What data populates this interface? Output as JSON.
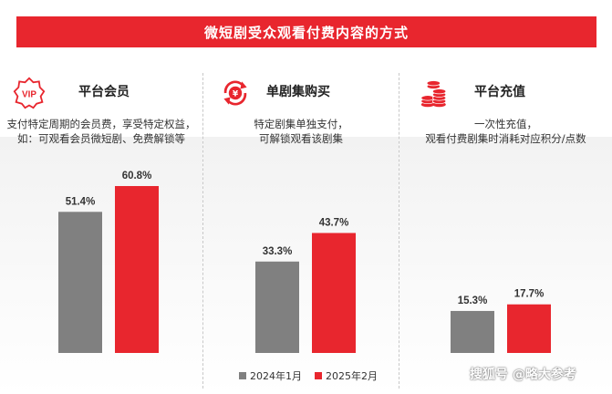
{
  "title": "微短剧受众观看付费内容的方式",
  "columns": [
    {
      "title": "平台会员",
      "desc": [
        "支付特定周期的会员费，享受特定权益，",
        "如：可观看会员微短剧、免费解锁等"
      ],
      "icon": "vip-badge-icon"
    },
    {
      "title": "单剧集购买",
      "desc": [
        "特定剧集单独支付，",
        "可解锁观看该剧集"
      ],
      "icon": "yen-refresh-icon"
    },
    {
      "title": "平台充值",
      "desc": [
        "一次性充值，",
        "观看付费剧集时消耗对应积分/点数"
      ],
      "icon": "coin-stack-icon"
    }
  ],
  "legend": [
    {
      "label": "2024年1月",
      "color": "#808080"
    },
    {
      "label": "2025年2月",
      "color": "#e8262e"
    }
  ],
  "watermark": "搜狐号 @略大参考",
  "colors": {
    "accent": "#e8262e",
    "gray": "#808080"
  },
  "chart_data": {
    "type": "bar",
    "categories": [
      "平台会员",
      "单剧集购买",
      "平台充值"
    ],
    "series": [
      {
        "name": "2024年1月",
        "values": [
          51.4,
          33.3,
          15.3
        ],
        "labels": [
          "51.4%",
          "33.3%",
          "15.3%"
        ]
      },
      {
        "name": "2025年2月",
        "values": [
          60.8,
          43.7,
          17.7
        ],
        "labels": [
          "60.8%",
          "43.7%",
          "17.7%"
        ]
      }
    ],
    "unit": "%",
    "ylim": [
      0,
      70
    ],
    "grid": false,
    "legend_position": "bottom"
  }
}
